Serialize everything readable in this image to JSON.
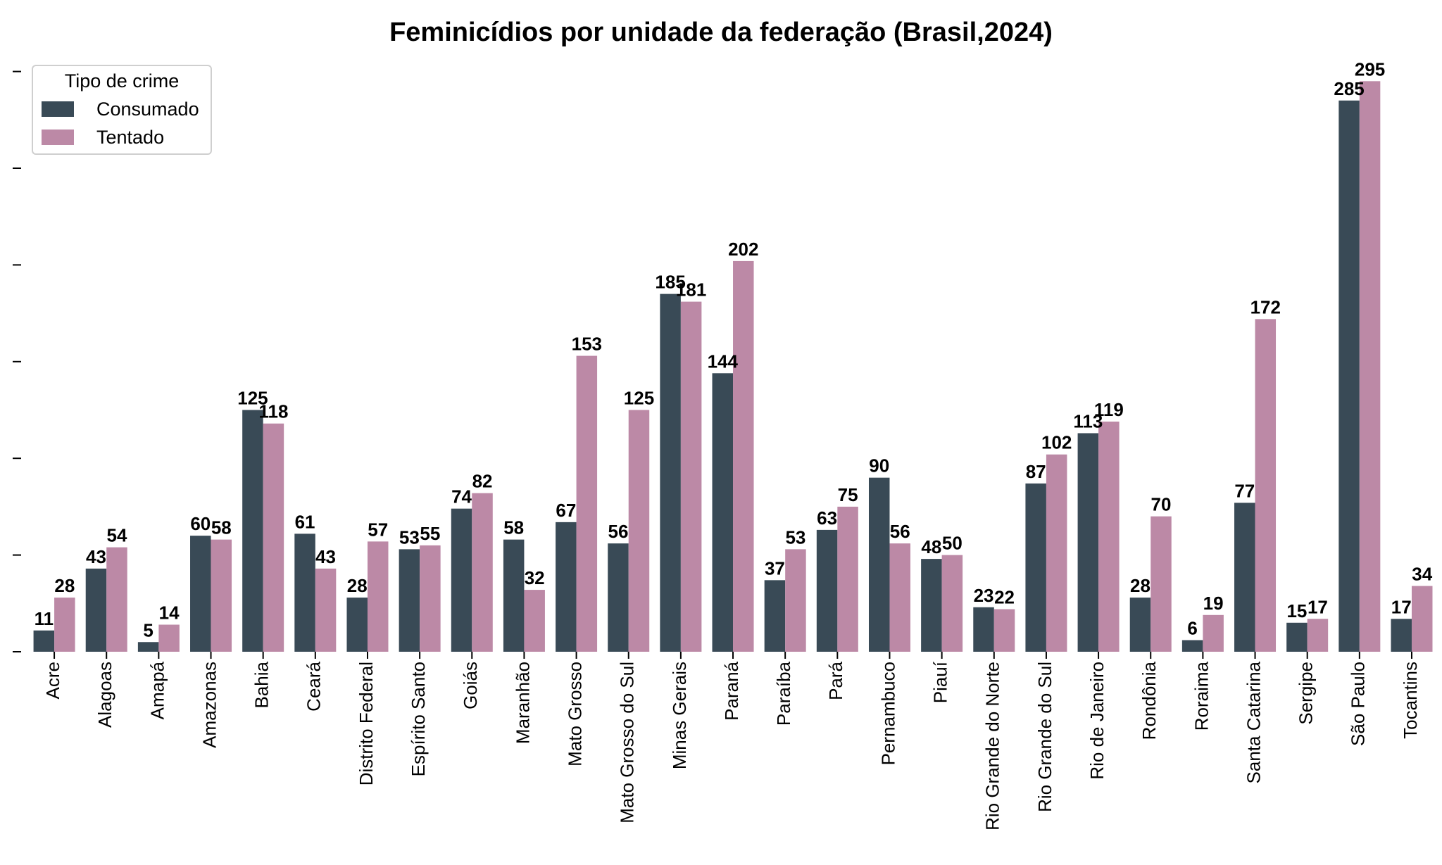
{
  "chart_data": {
    "type": "bar",
    "title": "Feminicídios por unidade da federação (Brasil,2024)",
    "xlabel": "",
    "ylabel": "",
    "ylim": [
      0,
      310
    ],
    "grid": false,
    "legend": {
      "title": "Tipo de crime",
      "position": "top-left"
    },
    "categories": [
      "Acre",
      "Alagoas",
      "Amapá",
      "Amazonas",
      "Bahia",
      "Ceará",
      "Distrito Federal",
      "Espírito Santo",
      "Goiás",
      "Maranhão",
      "Mato Grosso",
      "Mato Grosso do Sul",
      "Minas Gerais",
      "Paraná",
      "Paraíba",
      "Pará",
      "Pernambuco",
      "Piauí",
      "Rio Grande do Norte",
      "Rio Grande do Sul",
      "Rio de Janeiro",
      "Rondônia",
      "Roraima",
      "Santa Catarina",
      "Sergipe",
      "São Paulo",
      "Tocantins"
    ],
    "series": [
      {
        "name": "Consumado",
        "color": "#394a56",
        "values": [
          11,
          43,
          5,
          60,
          125,
          61,
          28,
          53,
          74,
          58,
          67,
          56,
          185,
          144,
          37,
          63,
          90,
          48,
          23,
          87,
          113,
          28,
          6,
          77,
          15,
          285,
          17
        ]
      },
      {
        "name": "Tentado",
        "color": "#bc89a6",
        "values": [
          28,
          54,
          14,
          58,
          118,
          43,
          57,
          55,
          82,
          32,
          153,
          125,
          181,
          202,
          53,
          75,
          56,
          50,
          22,
          102,
          119,
          70,
          19,
          172,
          17,
          295,
          34
        ]
      }
    ]
  }
}
